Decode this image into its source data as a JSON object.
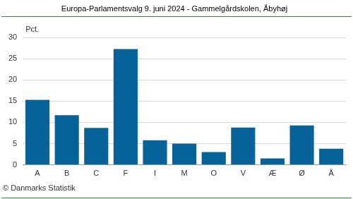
{
  "chart_data": {
    "type": "bar",
    "title": "Europa-Parlamentsvalg 9. juni 2024 - Gammelgårdskolen, Åbyhøj",
    "ylabel": "Pct.",
    "source": "© Danmarks Statistik",
    "categories": [
      "A",
      "B",
      "C",
      "F",
      "I",
      "M",
      "O",
      "V",
      "Æ",
      "Ø",
      "Å"
    ],
    "values": [
      15.3,
      11.7,
      8.7,
      27.3,
      5.8,
      5.0,
      3.0,
      8.8,
      1.5,
      9.3,
      3.8
    ],
    "color": "#07629a",
    "ylim": [
      0,
      30
    ],
    "yticks": [
      0,
      5,
      10,
      15,
      20,
      25,
      30
    ],
    "grid": true
  }
}
